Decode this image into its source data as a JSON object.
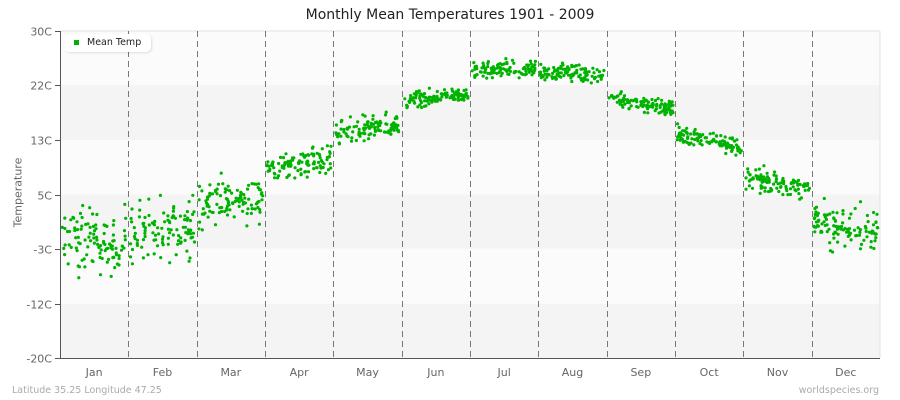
{
  "chart_data": {
    "type": "scatter",
    "title": "Monthly Mean Temperatures 1901 - 2009",
    "xlabel": "",
    "ylabel": "Temperature",
    "categories": [
      "Jan",
      "Feb",
      "Mar",
      "Apr",
      "May",
      "Jun",
      "Jul",
      "Aug",
      "Sep",
      "Oct",
      "Nov",
      "Dec"
    ],
    "y_ticks": [
      "30C",
      "22C",
      "13C",
      "5C",
      "-3C",
      "-12C",
      "-20C"
    ],
    "y_tick_values": [
      30,
      21.7,
      13.3,
      5,
      -3.3,
      -11.7,
      -20
    ],
    "ylim": [
      -20,
      30
    ],
    "grid": true,
    "legend_position": "top-left",
    "series": [
      {
        "name": "Mean Temp",
        "color": "#00b300",
        "monthly_mean": [
          -2.3,
          -0.5,
          4.0,
          9.8,
          14.9,
          19.9,
          24.3,
          23.7,
          19.0,
          13.3,
          6.7,
          -0.3
        ],
        "monthly_spread": [
          4.0,
          3.8,
          2.8,
          1.8,
          1.6,
          1.0,
          1.0,
          1.0,
          1.1,
          1.2,
          1.3,
          2.6
        ],
        "years": "1901-2009",
        "points_per_month": 109
      }
    ]
  },
  "title": "Monthly Mean Temperatures 1901 - 2009",
  "ylabel": "Temperature",
  "legend": {
    "label": "Mean Temp",
    "color": "#00b300"
  },
  "footer": {
    "left": "Latitude 35.25 Longitude 47.25",
    "right": "worldspecies.org"
  }
}
